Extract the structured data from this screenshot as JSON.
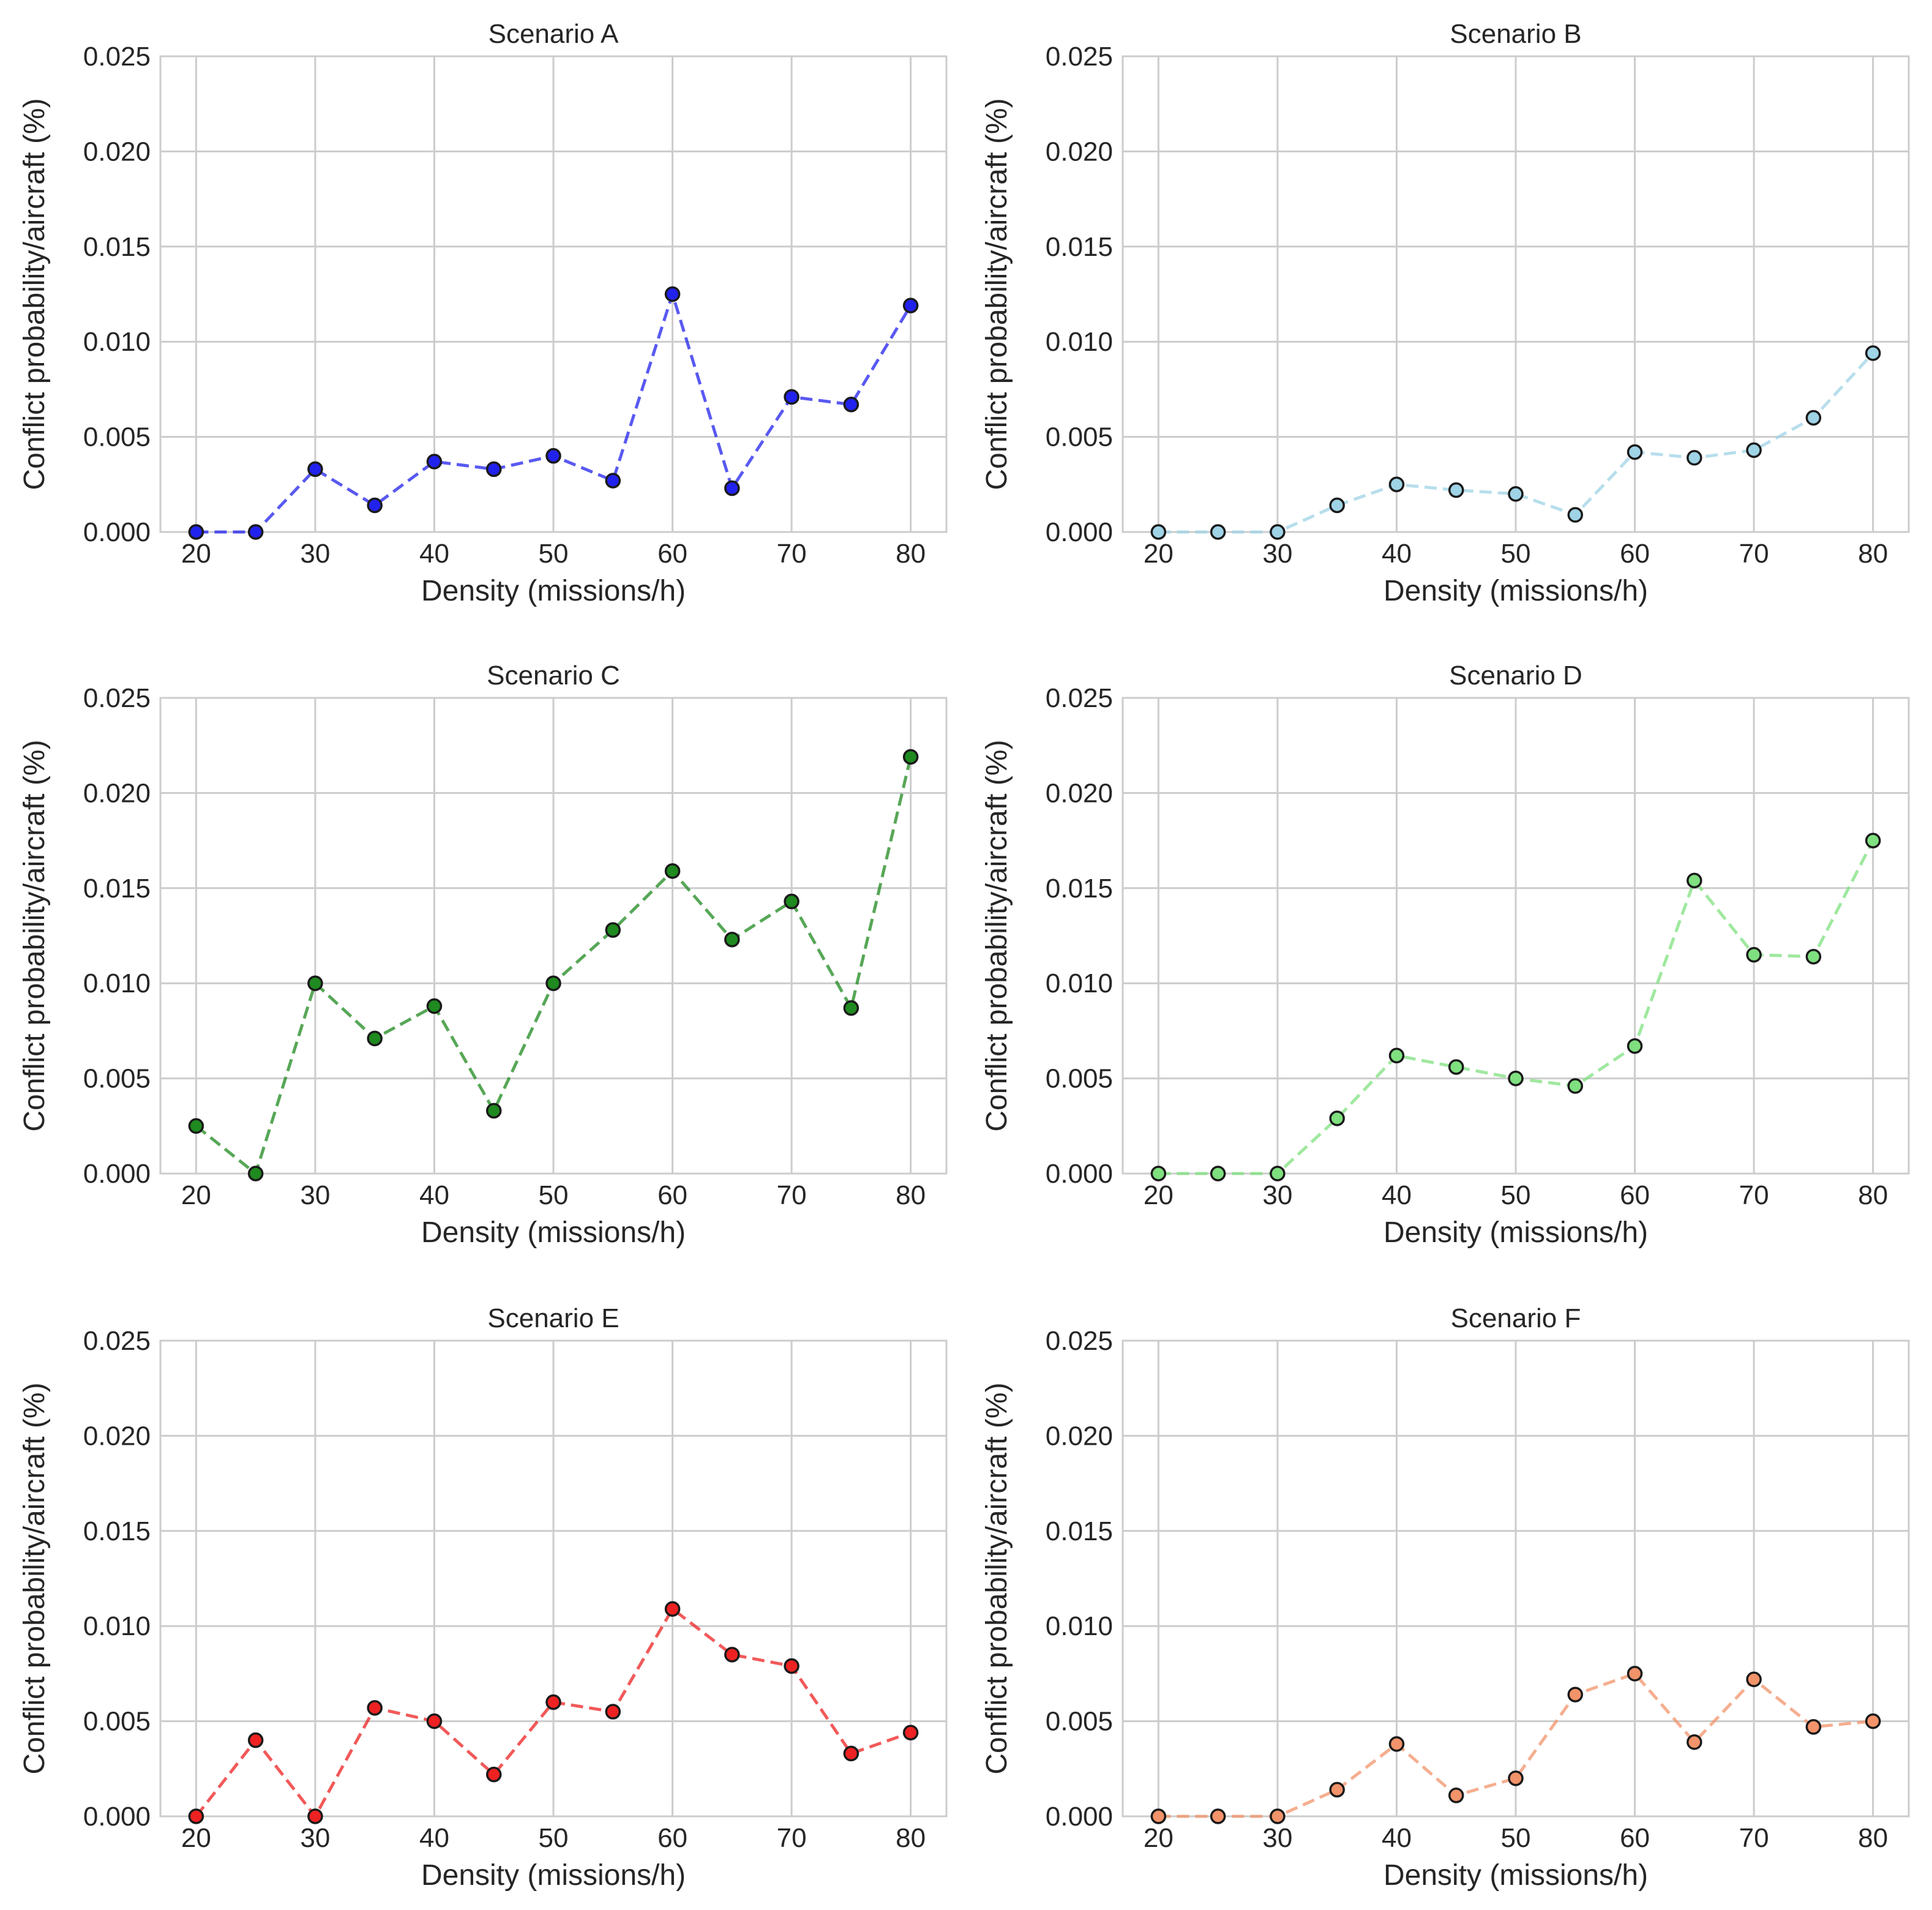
{
  "chart_data": [
    {
      "type": "line",
      "title": "Scenario A",
      "xlabel": "Density (missions/h)",
      "ylabel": "Conflict probability/aircraft (%)",
      "color": "#2222ee",
      "xlim": [
        17,
        83
      ],
      "ylim": [
        0,
        0.025
      ],
      "xticks": [
        20,
        30,
        40,
        50,
        60,
        70,
        80
      ],
      "yticks": [
        "0.000",
        "0.005",
        "0.010",
        "0.015",
        "0.020",
        "0.025"
      ],
      "x": [
        20,
        25,
        30,
        35,
        40,
        45,
        50,
        55,
        60,
        65,
        70,
        75,
        80
      ],
      "y": [
        0.0,
        0.0,
        0.0033,
        0.0014,
        0.0037,
        0.0033,
        0.004,
        0.0027,
        0.0125,
        0.0023,
        0.0071,
        0.0067,
        0.0119
      ]
    },
    {
      "type": "line",
      "title": "Scenario B",
      "xlabel": "Density (missions/h)",
      "ylabel": "Conflict probability/aircraft (%)",
      "color": "#9fd3e6",
      "xlim": [
        17,
        83
      ],
      "ylim": [
        0,
        0.025
      ],
      "xticks": [
        20,
        30,
        40,
        50,
        60,
        70,
        80
      ],
      "yticks": [
        "0.000",
        "0.005",
        "0.010",
        "0.015",
        "0.020",
        "0.025"
      ],
      "x": [
        20,
        25,
        30,
        35,
        40,
        45,
        50,
        55,
        60,
        65,
        70,
        75,
        80
      ],
      "y": [
        0.0,
        0.0,
        0.0,
        0.0014,
        0.0025,
        0.0022,
        0.002,
        0.0009,
        0.0042,
        0.0039,
        0.0043,
        0.006,
        0.0094
      ]
    },
    {
      "type": "line",
      "title": "Scenario C",
      "xlabel": "Density (missions/h)",
      "ylabel": "Conflict probability/aircraft (%)",
      "color": "#1f8a1f",
      "xlim": [
        17,
        83
      ],
      "ylim": [
        0,
        0.025
      ],
      "xticks": [
        20,
        30,
        40,
        50,
        60,
        70,
        80
      ],
      "yticks": [
        "0.000",
        "0.005",
        "0.010",
        "0.015",
        "0.020",
        "0.025"
      ],
      "x": [
        20,
        25,
        30,
        35,
        40,
        45,
        50,
        55,
        60,
        65,
        70,
        75,
        80
      ],
      "y": [
        0.0025,
        0.0,
        0.01,
        0.0071,
        0.0088,
        0.0033,
        0.01,
        0.0128,
        0.0159,
        0.0123,
        0.0143,
        0.0087,
        0.0219
      ]
    },
    {
      "type": "line",
      "title": "Scenario D",
      "xlabel": "Density (missions/h)",
      "ylabel": "Conflict probability/aircraft (%)",
      "color": "#7fe07f",
      "xlim": [
        17,
        83
      ],
      "ylim": [
        0,
        0.025
      ],
      "xticks": [
        20,
        30,
        40,
        50,
        60,
        70,
        80
      ],
      "yticks": [
        "0.000",
        "0.005",
        "0.010",
        "0.015",
        "0.020",
        "0.025"
      ],
      "x": [
        20,
        25,
        30,
        35,
        40,
        45,
        50,
        55,
        60,
        65,
        70,
        75,
        80
      ],
      "y": [
        0.0,
        0.0,
        0.0,
        0.0029,
        0.0062,
        0.0056,
        0.005,
        0.0046,
        0.0067,
        0.0154,
        0.0115,
        0.0114,
        0.0175
      ]
    },
    {
      "type": "line",
      "title": "Scenario E",
      "xlabel": "Density (missions/h)",
      "ylabel": "Conflict probability/aircraft (%)",
      "color": "#ee2222",
      "xlim": [
        17,
        83
      ],
      "ylim": [
        0,
        0.025
      ],
      "xticks": [
        20,
        30,
        40,
        50,
        60,
        70,
        80
      ],
      "yticks": [
        "0.000",
        "0.005",
        "0.010",
        "0.015",
        "0.020",
        "0.025"
      ],
      "x": [
        20,
        25,
        30,
        35,
        40,
        45,
        50,
        55,
        60,
        65,
        70,
        75,
        80
      ],
      "y": [
        0.0,
        0.004,
        0.0,
        0.0057,
        0.005,
        0.0022,
        0.006,
        0.0055,
        0.0109,
        0.0085,
        0.0079,
        0.0033,
        0.0044
      ]
    },
    {
      "type": "line",
      "title": "Scenario F",
      "xlabel": "Density (missions/h)",
      "ylabel": "Conflict probability/aircraft (%)",
      "color": "#f2936a",
      "xlim": [
        17,
        83
      ],
      "ylim": [
        0,
        0.025
      ],
      "xticks": [
        20,
        30,
        40,
        50,
        60,
        70,
        80
      ],
      "yticks": [
        "0.000",
        "0.005",
        "0.010",
        "0.015",
        "0.020",
        "0.025"
      ],
      "x": [
        20,
        25,
        30,
        35,
        40,
        45,
        50,
        55,
        60,
        65,
        70,
        75,
        80
      ],
      "y": [
        0.0,
        0.0,
        0.0,
        0.0014,
        0.0038,
        0.0011,
        0.002,
        0.0064,
        0.0075,
        0.0039,
        0.0072,
        0.0047,
        0.005
      ]
    }
  ]
}
